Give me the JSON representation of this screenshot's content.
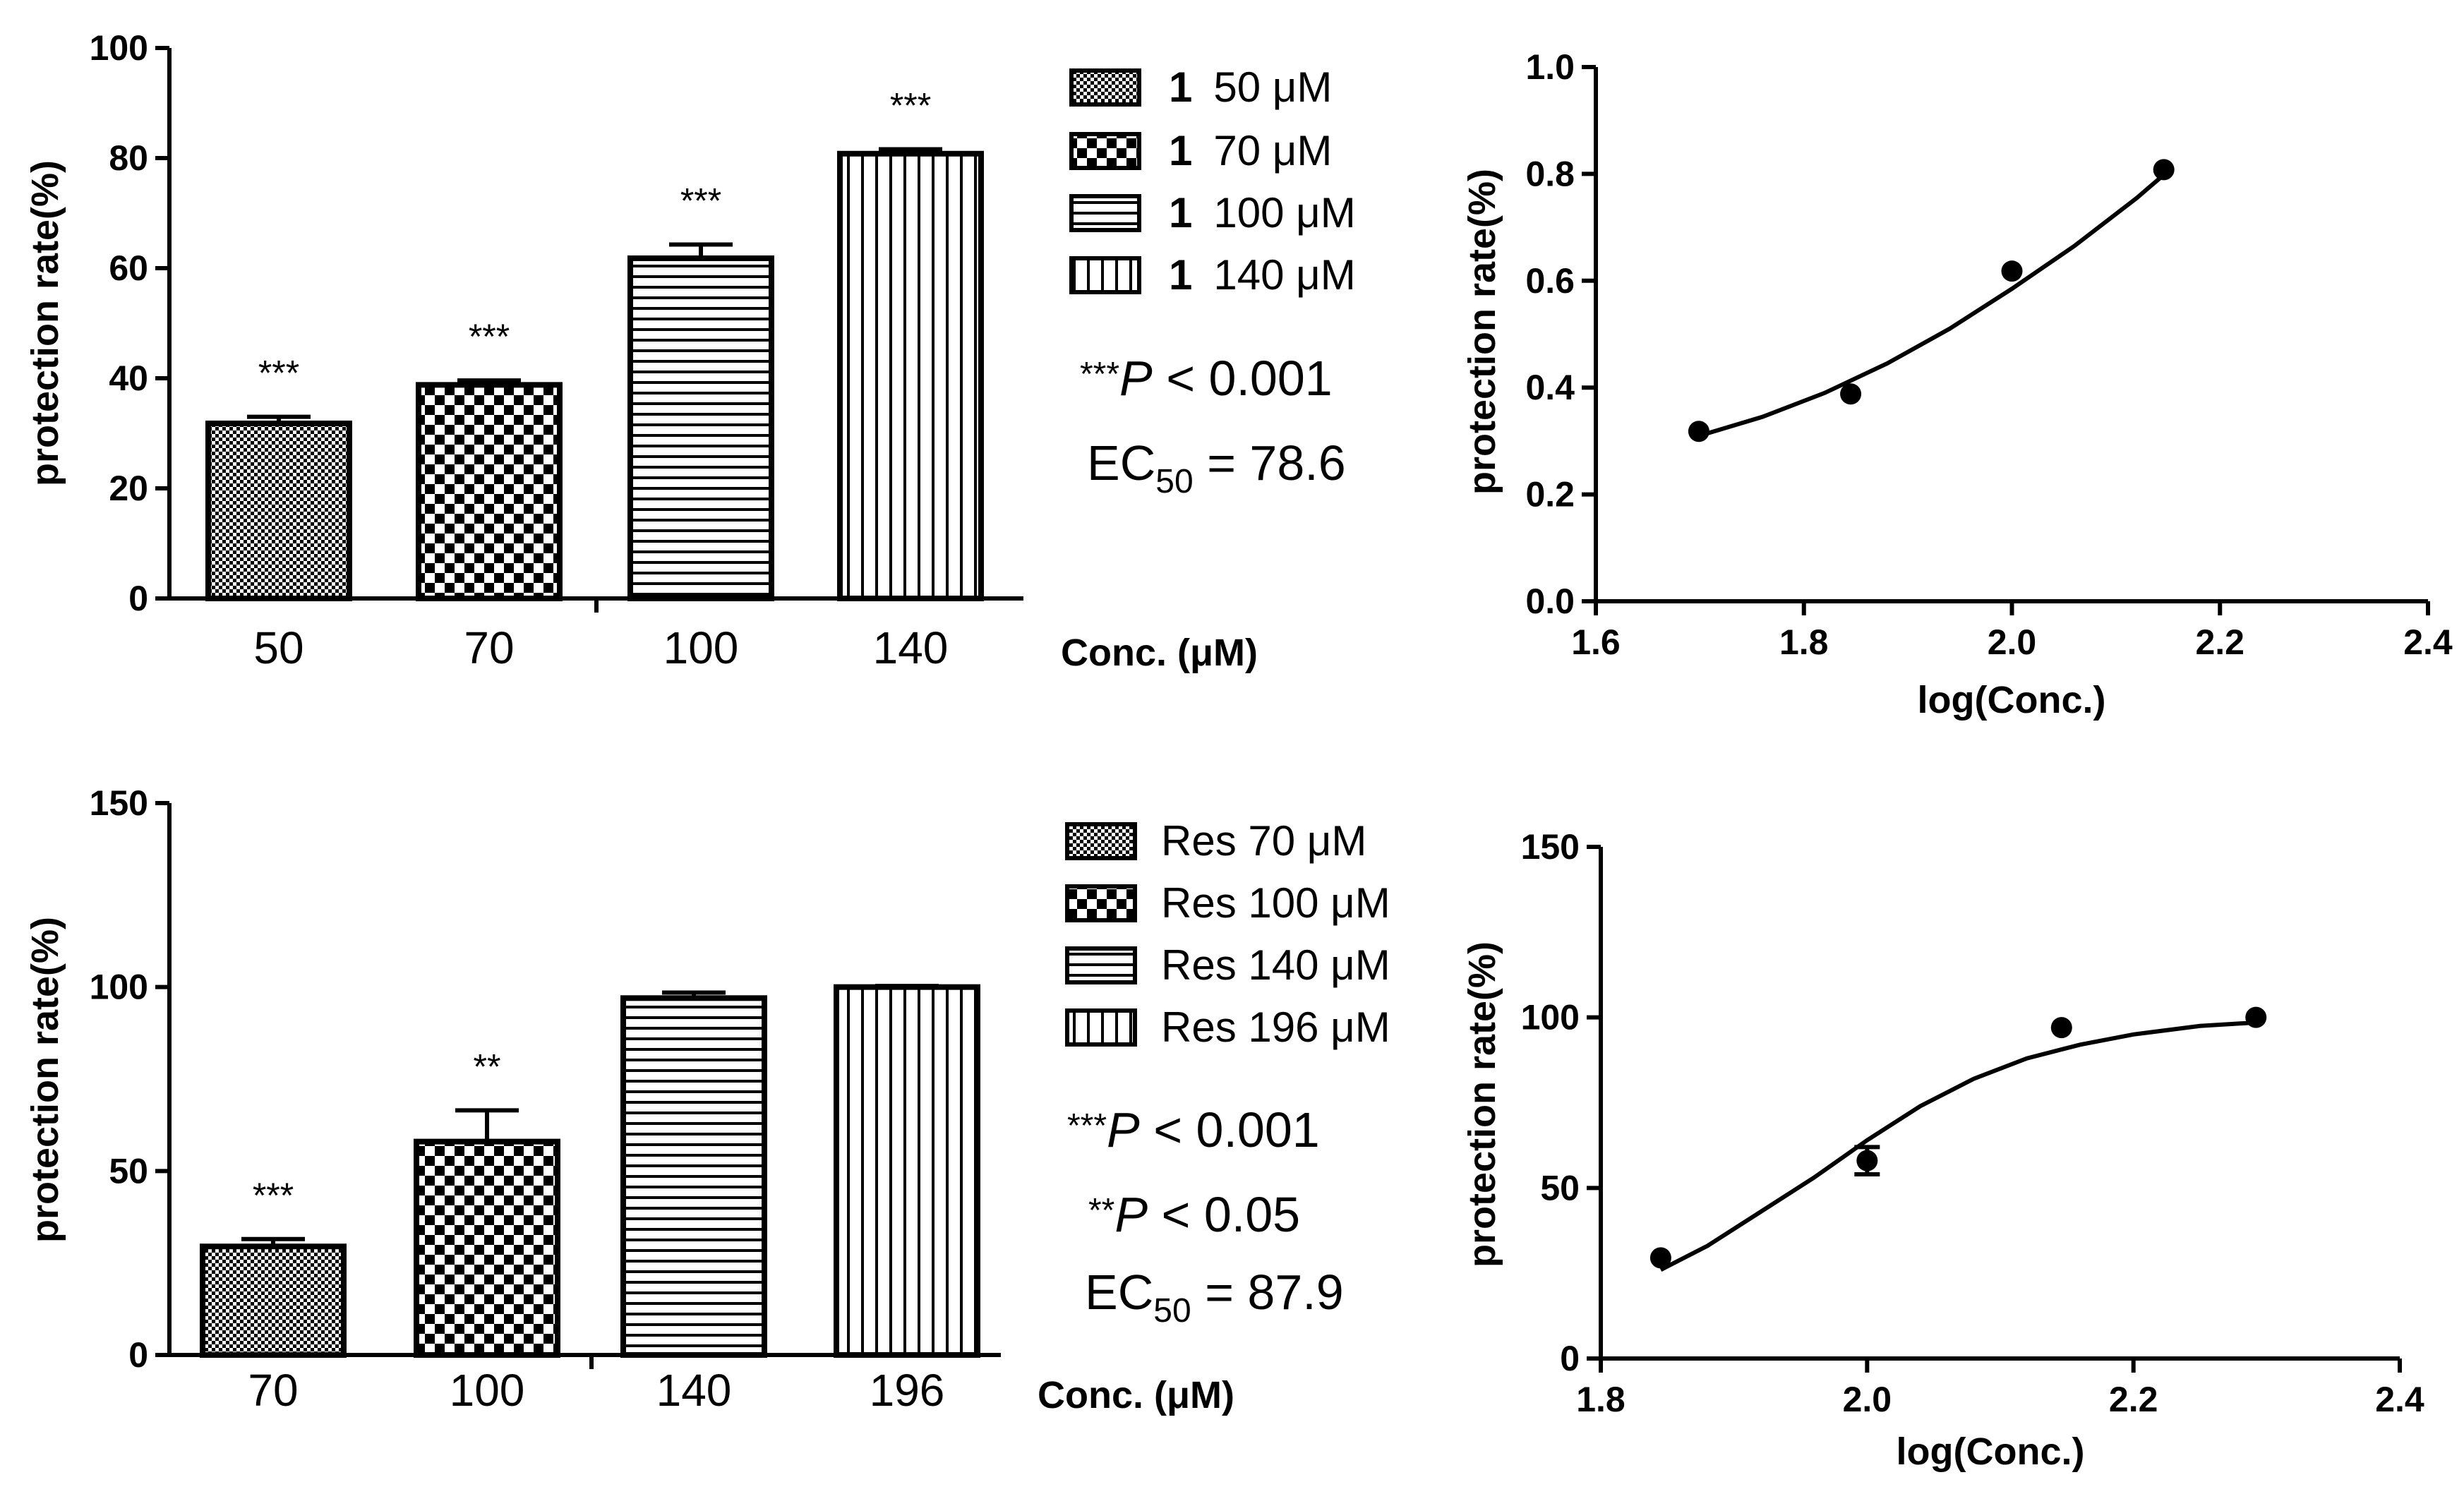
{
  "chart_data": [
    {
      "type": "bar",
      "id": "top-bar",
      "categories": [
        "50",
        "70",
        "100",
        "140"
      ],
      "values": [
        31.8,
        38.8,
        61.8,
        80.8
      ],
      "errors": [
        1.2,
        0.8,
        2.5,
        0.8
      ],
      "significance": [
        "***",
        "***",
        "***",
        "***"
      ],
      "ylabel": "protection rate(%)",
      "xlabel": "Conc. (μM)",
      "ylim": [
        0,
        100
      ],
      "yticks": [
        "0",
        "20",
        "40",
        "60",
        "80",
        "100"
      ],
      "legend": [
        {
          "prefix": "1",
          "text": "50 μM"
        },
        {
          "prefix": "1",
          "text": "70 μM"
        },
        {
          "prefix": "1",
          "text": "100 μM"
        },
        {
          "prefix": "1",
          "text": "140 μM"
        }
      ],
      "stats": {
        "p_stars": "***",
        "p_italic": "P",
        "p_rest": " < 0.001",
        "ec_prefix": "EC",
        "ec_sub": "50",
        "ec_rest": " = 78.6"
      }
    },
    {
      "type": "scatter",
      "id": "top-curve",
      "x": [
        1.699,
        1.845,
        2.0,
        2.146
      ],
      "y": [
        0.318,
        0.388,
        0.618,
        0.808
      ],
      "xlabel": "log(Conc.)",
      "ylabel": "protection rate(%)",
      "xlim": [
        1.6,
        2.4
      ],
      "ylim": [
        0.0,
        1.0
      ],
      "xticks": [
        "1.6",
        "1.8",
        "2.0",
        "2.2",
        "2.4"
      ],
      "yticks": [
        "0.0",
        "0.2",
        "0.4",
        "0.6",
        "0.8",
        "1.0"
      ],
      "fit": {
        "x": [
          1.7,
          1.76,
          1.82,
          1.88,
          1.94,
          2.0,
          2.06,
          2.12,
          2.15
        ],
        "y": [
          0.31,
          0.345,
          0.39,
          0.445,
          0.51,
          0.585,
          0.665,
          0.755,
          0.805
        ]
      }
    },
    {
      "type": "bar",
      "id": "bottom-bar",
      "categories": [
        "70",
        "100",
        "140",
        "196"
      ],
      "values": [
        29.5,
        58,
        97,
        100
      ],
      "errors": [
        2,
        8.5,
        1.5,
        0.3
      ],
      "significance": [
        "***",
        "**",
        "",
        ""
      ],
      "ylabel": "protection rate(%)",
      "xlabel": "Conc. (μM)",
      "ylim": [
        0,
        150
      ],
      "yticks": [
        "0",
        "50",
        "100",
        "150"
      ],
      "legend": [
        {
          "prefix": "",
          "text": "Res 70 μM"
        },
        {
          "prefix": "",
          "text": "Res 100 μM"
        },
        {
          "prefix": "",
          "text": "Res 140 μM"
        },
        {
          "prefix": "",
          "text": "Res 196 μM"
        }
      ],
      "stats": {
        "p1_stars": "***",
        "p1_italic": "P",
        "p1_rest": " < 0.001",
        "p2_stars": "**",
        "p2_italic": "P",
        "p2_rest": " < 0.05",
        "ec_prefix": "EC",
        "ec_sub": "50",
        "ec_rest": " = 87.9"
      }
    },
    {
      "type": "scatter",
      "id": "bottom-curve",
      "x": [
        1.845,
        2.0,
        2.146,
        2.292
      ],
      "y": [
        29.5,
        58,
        97,
        100
      ],
      "yerr": [
        0,
        4,
        0,
        0
      ],
      "xlabel": "log(Conc.)",
      "ylabel": "protection rate(%)",
      "xlim": [
        1.8,
        2.4
      ],
      "ylim": [
        0,
        150
      ],
      "xticks": [
        "1.8",
        "2.0",
        "2.2",
        "2.4"
      ],
      "yticks": [
        "0",
        "50",
        "100",
        "150"
      ],
      "fit": {
        "x": [
          1.845,
          1.88,
          1.92,
          1.96,
          2.0,
          2.04,
          2.08,
          2.12,
          2.16,
          2.2,
          2.25,
          2.292
        ],
        "y": [
          26,
          33,
          43,
          53,
          64,
          74,
          82,
          88,
          92,
          95,
          97.5,
          98.5
        ]
      }
    }
  ]
}
